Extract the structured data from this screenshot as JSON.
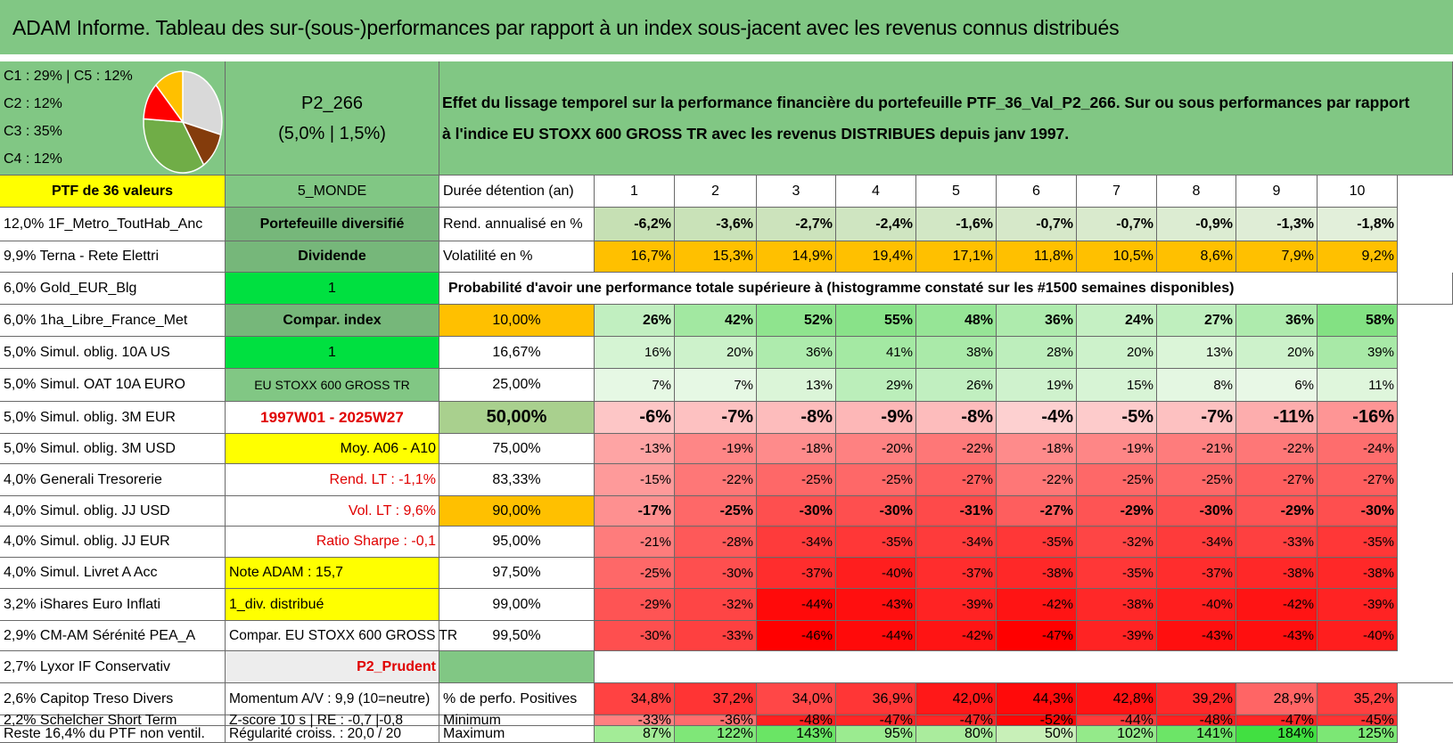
{
  "title": "ADAM Informe. Tableau des sur-(sous-)performances par rapport à un index sous-jacent avec les revenus connus distribués",
  "composition": {
    "lines": [
      "C1 : 29% | C5 : 12%",
      "C2 : 12%",
      "C3 : 35%",
      "C4 : 12%"
    ],
    "pie": [
      {
        "label": "C1",
        "value": 29,
        "color": "#d9d9d9"
      },
      {
        "label": "C5",
        "value": 12,
        "color": "#843c0c"
      },
      {
        "label": "C3",
        "value": 35,
        "color": "#70ad47"
      },
      {
        "label": "C2",
        "value": 12,
        "color": "#ff0000"
      },
      {
        "label": "C4",
        "value": 12,
        "color": "#ffc000"
      }
    ]
  },
  "portfolio": {
    "code": "P2_266",
    "rates": "(5,0% | 1,5%)"
  },
  "description": {
    "line1": "Effet du lissage temporel sur la performance financière du portefeuille PTF_36_Val_P2_266. Sur ou sous performances par rapport",
    "line2": "à l'indice EU STOXX 600 GROSS TR avec les revenus DISTRIBUES depuis janv 1997."
  },
  "holdings": [
    "PTF de 36 valeurs",
    "12,0% 1F_Metro_ToutHab_Anc",
    "9,9% Terna - Rete Elettri",
    "6,0% Gold_EUR_Blg",
    "6,0% 1ha_Libre_France_Met",
    "5,0% Simul. oblig. 10A US",
    "5,0% Simul. OAT 10A EURO",
    "5,0% Simul. oblig. 3M EUR",
    "5,0% Simul. oblig. 3M USD",
    "4,0% Generali Tresorerie",
    "4,0% Simul. oblig. JJ USD",
    "4,0% Simul. oblig. JJ EUR",
    "4,0% Simul. Livret A Acc",
    "3,2% iShares Euro Inflati",
    "2,9% CM-AM Sérénité PEA_A",
    "2,7% Lyxor IF Conservativ",
    "2,6% Capitop Treso Divers",
    "2,2% Schelcher Short Term",
    "Reste 16,4% du PTF non ventil."
  ],
  "params": [
    "5_MONDE",
    "Portefeuille diversifié",
    "Dividende",
    "1",
    "Compar. index",
    "1",
    "EU STOXX 600 GROSS TR",
    "1997W01 - 2025W27",
    "Moy. A06 - A10",
    "Rend. LT : -1,1%",
    "Vol. LT : 9,6%",
    "Ratio Sharpe : -0,1",
    "Note ADAM : 15,7",
    "1_div. distribué",
    "Compar. EU STOXX 600 GROSS TR",
    "P2_Prudent",
    "Momentum A/V : 9,9 (10=neutre)",
    "Z-score 10 s | RE : -0,7 |-0,8",
    "Régularité croiss. : 20,0 / 20"
  ],
  "table": {
    "duration_label": "Durée détention (an)",
    "years": [
      "1",
      "2",
      "3",
      "4",
      "5",
      "6",
      "7",
      "8",
      "9",
      "10"
    ],
    "rend_label": "Rend. annualisé en %",
    "rend": [
      "-6,2%",
      "-3,6%",
      "-2,7%",
      "-2,4%",
      "-1,6%",
      "-0,7%",
      "-0,7%",
      "-0,9%",
      "-1,3%",
      "-1,8%"
    ],
    "vol_label": "Volatilité en %",
    "vol": [
      "16,7%",
      "15,3%",
      "14,9%",
      "19,4%",
      "17,1%",
      "11,8%",
      "10,5%",
      "8,6%",
      "7,9%",
      "9,2%"
    ],
    "prob_title": "Probabilité d'avoir une performance totale supérieure à (histogramme constaté sur les #1500 semaines disponibles)",
    "quantiles": [
      {
        "q": "10,00%",
        "v": [
          "26%",
          "42%",
          "52%",
          "55%",
          "48%",
          "36%",
          "24%",
          "27%",
          "36%",
          "58%"
        ]
      },
      {
        "q": "16,67%",
        "v": [
          "16%",
          "20%",
          "36%",
          "41%",
          "38%",
          "28%",
          "20%",
          "13%",
          "20%",
          "39%"
        ]
      },
      {
        "q": "25,00%",
        "v": [
          "7%",
          "7%",
          "13%",
          "29%",
          "26%",
          "19%",
          "15%",
          "8%",
          "6%",
          "11%"
        ]
      },
      {
        "q": "50,00%",
        "v": [
          "-6%",
          "-7%",
          "-8%",
          "-9%",
          "-8%",
          "-4%",
          "-5%",
          "-7%",
          "-11%",
          "-16%"
        ]
      },
      {
        "q": "75,00%",
        "v": [
          "-13%",
          "-19%",
          "-18%",
          "-20%",
          "-22%",
          "-18%",
          "-19%",
          "-21%",
          "-22%",
          "-24%"
        ]
      },
      {
        "q": "83,33%",
        "v": [
          "-15%",
          "-22%",
          "-25%",
          "-25%",
          "-27%",
          "-22%",
          "-25%",
          "-25%",
          "-27%",
          "-27%"
        ]
      },
      {
        "q": "90,00%",
        "v": [
          "-17%",
          "-25%",
          "-30%",
          "-30%",
          "-31%",
          "-27%",
          "-29%",
          "-30%",
          "-29%",
          "-30%"
        ]
      },
      {
        "q": "95,00%",
        "v": [
          "-21%",
          "-28%",
          "-34%",
          "-35%",
          "-34%",
          "-35%",
          "-32%",
          "-34%",
          "-33%",
          "-35%"
        ]
      },
      {
        "q": "97,50%",
        "v": [
          "-25%",
          "-30%",
          "-37%",
          "-40%",
          "-37%",
          "-38%",
          "-35%",
          "-37%",
          "-38%",
          "-38%"
        ]
      },
      {
        "q": "99,00%",
        "v": [
          "-29%",
          "-32%",
          "-44%",
          "-43%",
          "-39%",
          "-42%",
          "-38%",
          "-40%",
          "-42%",
          "-39%"
        ]
      },
      {
        "q": "99,50%",
        "v": [
          "-30%",
          "-33%",
          "-46%",
          "-44%",
          "-42%",
          "-47%",
          "-39%",
          "-43%",
          "-43%",
          "-40%"
        ]
      }
    ],
    "pos_label": "% de perfo. Positives",
    "pos": [
      "34,8%",
      "37,2%",
      "34,0%",
      "36,9%",
      "42,0%",
      "44,3%",
      "42,8%",
      "39,2%",
      "28,9%",
      "35,2%"
    ],
    "min_label": "Minimum",
    "min": [
      "-33%",
      "-36%",
      "-48%",
      "-47%",
      "-47%",
      "-52%",
      "-44%",
      "-48%",
      "-47%",
      "-45%"
    ],
    "max_label": "Maximum",
    "max": [
      "87%",
      "122%",
      "143%",
      "95%",
      "80%",
      "50%",
      "102%",
      "141%",
      "184%",
      "125%"
    ]
  }
}
